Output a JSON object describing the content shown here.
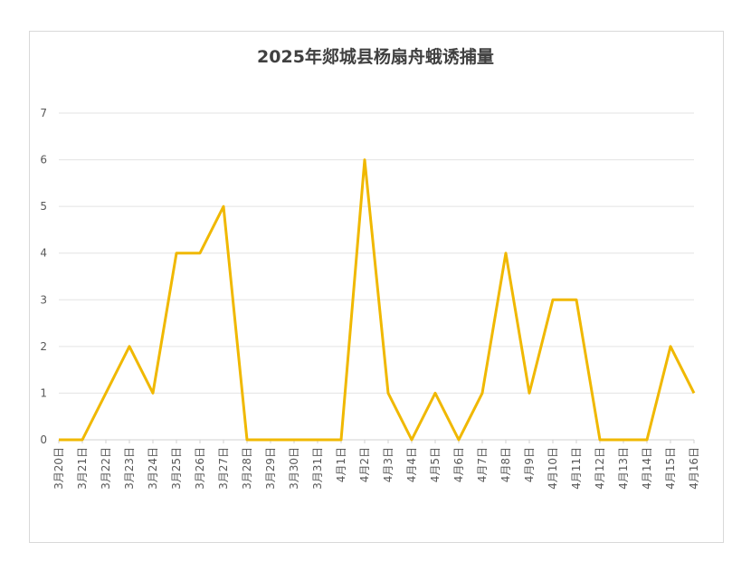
{
  "chart_data": {
    "type": "line",
    "title": "2025年郯城县杨扇舟蛾诱捕量",
    "categories": [
      "3月20日",
      "3月21日",
      "3月22日",
      "3月23日",
      "3月24日",
      "3月25日",
      "3月26日",
      "3月27日",
      "3月28日",
      "3月29日",
      "3月30日",
      "3月31日",
      "4月1日",
      "4月2日",
      "4月3日",
      "4月4日",
      "4月5日",
      "4月6日",
      "4月7日",
      "4月8日",
      "4月9日",
      "4月10日",
      "4月11日",
      "4月12日",
      "4月13日",
      "4月14日",
      "4月15日",
      "4月16日"
    ],
    "values": [
      0,
      0,
      1,
      2,
      1,
      4,
      4,
      5,
      0,
      0,
      0,
      0,
      0,
      6,
      1,
      0,
      1,
      0,
      1,
      4,
      1,
      3,
      3,
      0,
      0,
      0,
      2,
      1
    ],
    "ylim": [
      0,
      7
    ],
    "yticks": [
      0,
      1,
      2,
      3,
      4,
      5,
      6,
      7
    ],
    "grid": true,
    "line_color": "#f0b800",
    "grid_color": "#e3e3e3"
  }
}
